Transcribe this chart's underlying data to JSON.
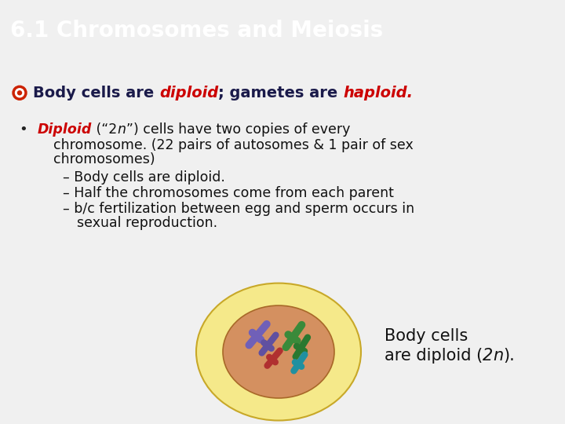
{
  "title": "6.1 Chromosomes and Meiosis",
  "title_bg_color": "#1a7a7a",
  "title_text_color": "#ffffff",
  "title_fontsize": 20,
  "slide_bg_color": "#f0f0f0",
  "bullet1_normal_color": "#1a1a4a",
  "bullet1_red_color": "#cc0000",
  "bullet1_fontsize": 14,
  "sub_bullet_color": "#cc0000",
  "sub_bullet_normal_color": "#111111",
  "sub_bullet_fontsize": 12.5,
  "dash_fontsize": 12.5,
  "outer_ellipse_color": "#f5e98a",
  "outer_ellipse_edge": "#c8a828",
  "inner_ellipse_color": "#d49060",
  "inner_ellipse_edge": "#a86828",
  "chrom_purple1": "#7060b8",
  "chrom_purple2": "#6050a0",
  "chrom_red": "#b03030",
  "chrom_green1": "#3a8a3a",
  "chrom_green2": "#2a7830",
  "chrom_teal": "#2090a0",
  "bullet_icon_color": "#cc2200",
  "cell_label_color": "#111111",
  "cell_label_fontsize": 15
}
